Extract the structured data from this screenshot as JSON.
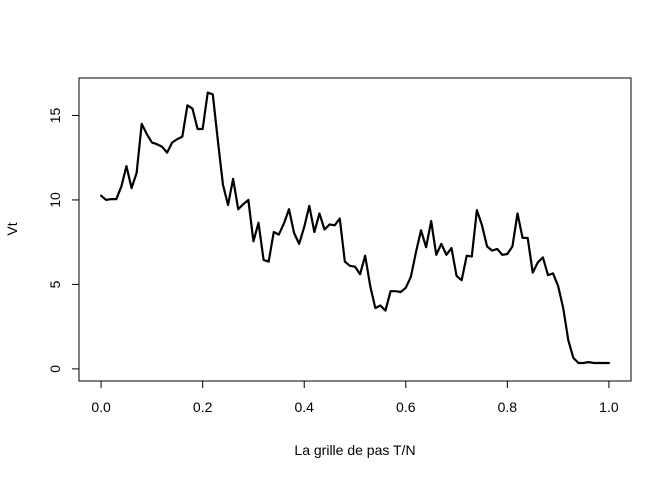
{
  "chart_data": {
    "type": "line",
    "title": "",
    "xlabel": "La grille de pas T/N",
    "ylabel": "Vt",
    "xlim": [
      0,
      1
    ],
    "ylim": [
      0,
      16.5
    ],
    "x_ticks": [
      0.0,
      0.2,
      0.4,
      0.6,
      0.8,
      1.0
    ],
    "x_tick_labels": [
      "0.0",
      "0.2",
      "0.4",
      "0.6",
      "0.8",
      "1.0"
    ],
    "y_ticks": [
      0,
      5,
      10,
      15
    ],
    "y_tick_labels": [
      "0",
      "5",
      "10",
      "15"
    ],
    "grid": false,
    "legend": "none",
    "line_color": "#000000",
    "series": [
      {
        "x": [
          0.0,
          0.01,
          0.02,
          0.03,
          0.04,
          0.05,
          0.06,
          0.07,
          0.08,
          0.09,
          0.1,
          0.11,
          0.12,
          0.13,
          0.14,
          0.15,
          0.16,
          0.17,
          0.18,
          0.19,
          0.2,
          0.21,
          0.22,
          0.23,
          0.24,
          0.25,
          0.26,
          0.27,
          0.28,
          0.29,
          0.3,
          0.31,
          0.32,
          0.33,
          0.34,
          0.35,
          0.36,
          0.37,
          0.38,
          0.39,
          0.4,
          0.41,
          0.42,
          0.43,
          0.44,
          0.45,
          0.46,
          0.47,
          0.48,
          0.49,
          0.5,
          0.51,
          0.52,
          0.53,
          0.54,
          0.55,
          0.56,
          0.57,
          0.58,
          0.59,
          0.6,
          0.61,
          0.62,
          0.63,
          0.64,
          0.65,
          0.66,
          0.67,
          0.68,
          0.69,
          0.7,
          0.71,
          0.72,
          0.73,
          0.74,
          0.75,
          0.76,
          0.77,
          0.78,
          0.79,
          0.8,
          0.81,
          0.82,
          0.83,
          0.84,
          0.85,
          0.86,
          0.87,
          0.88,
          0.89,
          0.9,
          0.91,
          0.92,
          0.93,
          0.94,
          0.95,
          0.96,
          0.97,
          0.98,
          0.99,
          1.0
        ],
        "y": [
          10.25,
          10.0,
          10.05,
          10.05,
          10.8,
          12.0,
          10.7,
          11.6,
          14.5,
          13.9,
          13.4,
          13.3,
          13.15,
          12.8,
          13.4,
          13.6,
          13.75,
          15.6,
          15.4,
          14.2,
          14.2,
          16.35,
          16.25,
          13.5,
          10.9,
          9.7,
          11.25,
          9.45,
          9.75,
          10.0,
          7.55,
          8.65,
          6.45,
          6.35,
          8.1,
          7.95,
          8.6,
          9.45,
          8.05,
          7.4,
          8.4,
          9.65,
          8.1,
          9.2,
          8.25,
          8.55,
          8.5,
          8.9,
          6.35,
          6.1,
          6.05,
          5.6,
          6.7,
          4.9,
          3.6,
          3.75,
          3.45,
          4.6,
          4.6,
          4.55,
          4.8,
          5.45,
          6.9,
          8.2,
          7.2,
          8.75,
          6.75,
          7.4,
          6.75,
          7.15,
          5.5,
          5.25,
          6.7,
          6.65,
          9.4,
          8.5,
          7.25,
          7.0,
          7.1,
          6.75,
          6.8,
          7.25,
          9.2,
          7.75,
          7.75,
          5.7,
          6.3,
          6.6,
          5.55,
          5.65,
          4.9,
          3.6,
          1.7,
          0.65,
          0.35,
          0.35,
          0.4,
          0.35,
          0.35,
          0.35,
          0.35
        ]
      }
    ]
  }
}
